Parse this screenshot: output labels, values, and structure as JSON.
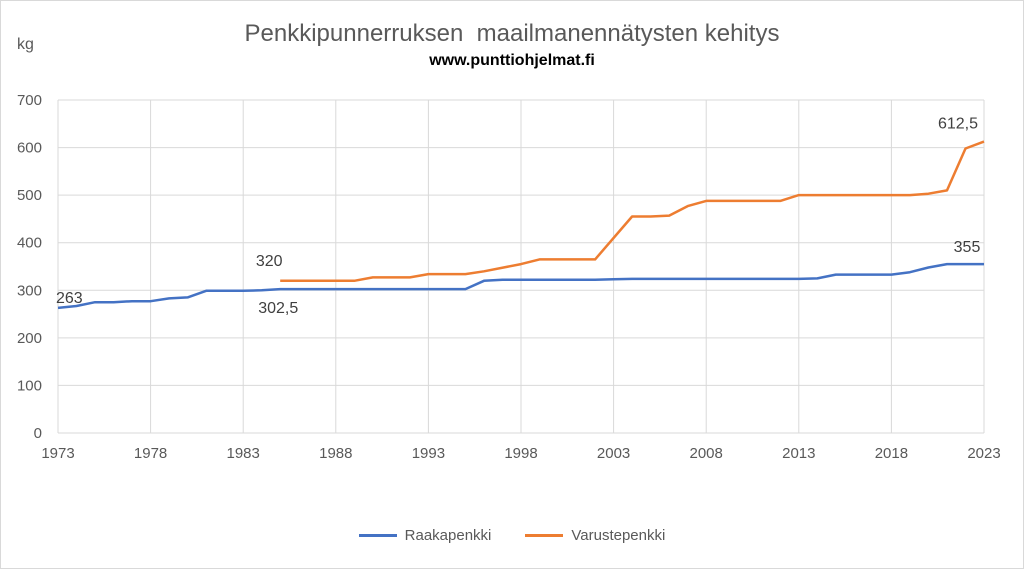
{
  "chart_data": {
    "type": "line",
    "title": "Penkkipunnerruksen  maailmanennätysten kehitys",
    "subtitle": "www.punttiohjelmat.fi",
    "ylabel": "kg",
    "xlabel": "",
    "xlim": [
      1973,
      2023
    ],
    "ylim": [
      0,
      700
    ],
    "xticks": [
      "1973",
      "1978",
      "1983",
      "1988",
      "1993",
      "1998",
      "2003",
      "2008",
      "2013",
      "2018",
      "2023"
    ],
    "yticks": [
      "0",
      "100",
      "200",
      "300",
      "400",
      "500",
      "600",
      "700"
    ],
    "grid": true,
    "legend_position": "bottom",
    "series": [
      {
        "name": "Raakapenkki",
        "color": "#4472C4",
        "x": [
          1973,
          1974,
          1975,
          1976,
          1977,
          1978,
          1979,
          1980,
          1981,
          1982,
          1983,
          1984,
          1985,
          1990,
          1995,
          1996,
          1997,
          2002,
          2003,
          2004,
          2013,
          2014,
          2015,
          2018,
          2019,
          2020,
          2021,
          2022,
          2023
        ],
        "values": [
          263,
          267,
          275,
          275,
          277,
          277,
          283,
          285,
          299,
          299,
          299,
          300,
          302.5,
          302.5,
          302.5,
          320,
          322,
          322,
          323,
          324,
          324,
          325,
          333,
          333,
          338,
          348,
          355,
          355,
          355
        ]
      },
      {
        "name": "Varustepenkki",
        "color": "#ED7D31",
        "x": [
          1985,
          1989,
          1990,
          1992,
          1993,
          1995,
          1996,
          1998,
          1999,
          2002,
          2004,
          2005,
          2006,
          2007,
          2008,
          2012,
          2013,
          2019,
          2020,
          2021,
          2022,
          2023
        ],
        "values": [
          320,
          320,
          327,
          327,
          334,
          334,
          340,
          355,
          365,
          365,
          455,
          455,
          457,
          477,
          488,
          488,
          500,
          500,
          503,
          510,
          598,
          612.5
        ]
      }
    ],
    "data_labels": [
      {
        "text": "263",
        "x": 1973,
        "y": 263,
        "series": "Raakapenkki"
      },
      {
        "text": "302,5",
        "x": 1985,
        "y": 302.5,
        "series": "Raakapenkki"
      },
      {
        "text": "320",
        "x": 1985,
        "y": 320,
        "series": "Varustepenkki"
      },
      {
        "text": "355",
        "x": 2023,
        "y": 355,
        "series": "Raakapenkki"
      },
      {
        "text": "612,5",
        "x": 2023,
        "y": 612.5,
        "series": "Varustepenkki"
      }
    ]
  }
}
